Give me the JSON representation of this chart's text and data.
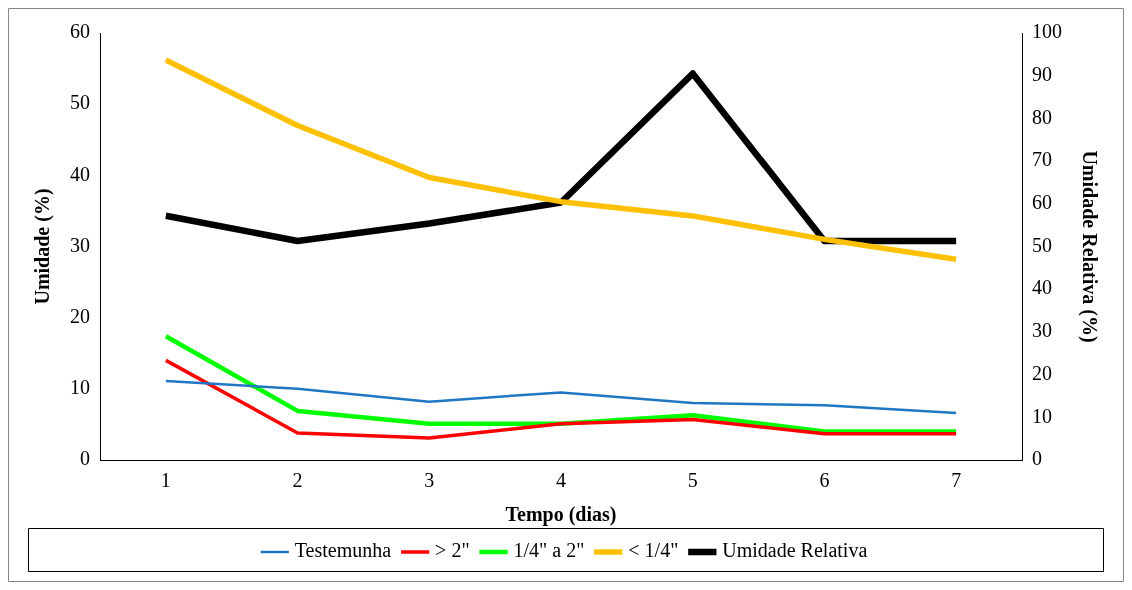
{
  "chart_data": {
    "type": "line",
    "xlabel": "Tempo (dias)",
    "ylabel": "Umidade (%)",
    "y2label": "Umidade Relativa (%)",
    "categories": [
      "1",
      "2",
      "3",
      "4",
      "5",
      "6",
      "7"
    ],
    "ylim": [
      0,
      60
    ],
    "yticks": [
      0,
      10,
      20,
      30,
      40,
      50,
      60
    ],
    "y2lim": [
      0,
      100
    ],
    "y2ticks": [
      0,
      10,
      20,
      30,
      40,
      50,
      60,
      70,
      80,
      90,
      100
    ],
    "grid": false,
    "legend": "bottom",
    "marker": "none",
    "line_style": "solid",
    "series": [
      {
        "name": "Testemunha",
        "color": "#1f77c4",
        "values": [
          11.1,
          10,
          8.2,
          9.5,
          8,
          7.7,
          6.6
        ]
      },
      {
        "name": "> 2\"",
        "color": "#ff0000",
        "values": [
          14,
          3.8,
          3.1,
          5.1,
          5.7,
          3.7,
          3.7
        ]
      },
      {
        "name": "1/4\" a 2\"",
        "color": "#00ff00",
        "values": [
          17.4,
          6.9,
          5.1,
          5.1,
          6.3,
          4,
          4
        ]
      },
      {
        "name": "< 1/4\"",
        "color": "#ffc000",
        "values": [
          56.2,
          47,
          39.7,
          36.3,
          34.3,
          31,
          28.2
        ]
      },
      {
        "name": "Umidade Relativa",
        "color": "#000000",
        "axis": "y2",
        "values": [
          57.2,
          51.3,
          55.4,
          60.3,
          90.5,
          51.3,
          51.3
        ]
      }
    ]
  }
}
